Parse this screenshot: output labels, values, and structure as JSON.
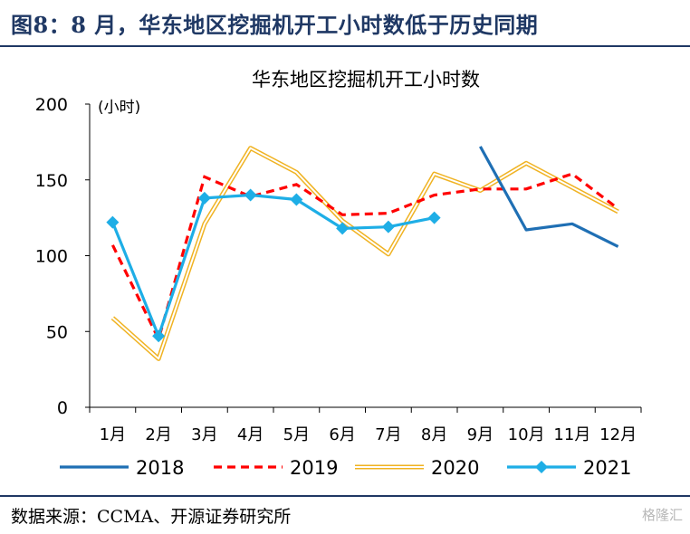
{
  "header": {
    "figure_title": "图8：8 月，华东地区挖掘机开工小时数低于历史同期"
  },
  "footer": {
    "source": "数据来源：CCMA、开源证券研究所",
    "watermark": "格隆汇"
  },
  "chart_data": {
    "type": "line",
    "title": "华东地区挖掘机开工小时数",
    "ylabel": "(小时)",
    "xlabel": "",
    "categories": [
      "1月",
      "2月",
      "3月",
      "4月",
      "5月",
      "6月",
      "7月",
      "8月",
      "9月",
      "10月",
      "11月",
      "12月"
    ],
    "ylim": [
      0,
      200
    ],
    "yticks": [
      0,
      50,
      100,
      150,
      200
    ],
    "grid": false,
    "legend_position": "bottom",
    "series": [
      {
        "name": "2018",
        "color": "#1f6fb4",
        "style": "solid",
        "values": [
          null,
          null,
          null,
          null,
          null,
          null,
          null,
          null,
          172,
          117,
          121,
          106
        ]
      },
      {
        "name": "2019",
        "color": "#ff0000",
        "style": "dashed",
        "values": [
          107,
          45,
          152,
          139,
          147,
          127,
          128,
          140,
          144,
          144,
          154,
          131
        ]
      },
      {
        "name": "2020",
        "color": "#f0b323",
        "style": "double",
        "values": [
          59,
          32,
          121,
          171,
          155,
          123,
          101,
          154,
          143,
          161,
          145,
          129
        ]
      },
      {
        "name": "2021",
        "color": "#1eaee6",
        "style": "marker",
        "values": [
          122,
          47,
          138,
          140,
          137,
          118,
          119,
          125,
          null,
          null,
          null,
          null
        ]
      }
    ]
  }
}
